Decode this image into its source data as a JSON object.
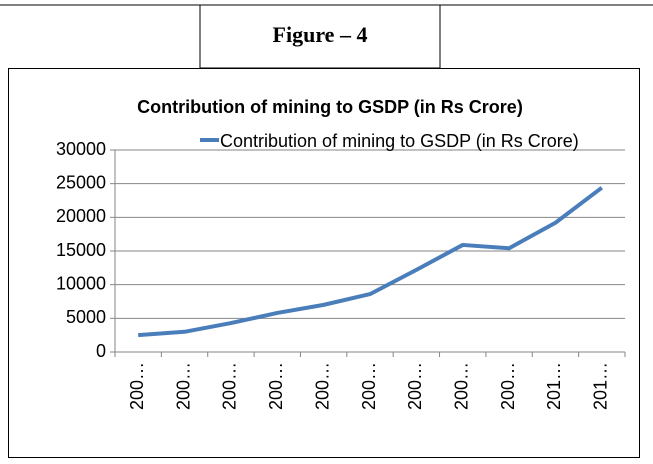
{
  "figure_label": "Figure – 4",
  "chart_data": {
    "type": "line",
    "title": "Contribution of mining to GSDP (in Rs Crore)",
    "categories": [
      "200…",
      "200…",
      "200…",
      "200…",
      "200…",
      "200…",
      "200…",
      "200…",
      "200…",
      "201…",
      "201…"
    ],
    "series": [
      {
        "name": "Contribution of mining to GSDP (in Rs Crore)",
        "color": "#4a7ebb",
        "values": [
          2500,
          3000,
          4300,
          5800,
          7000,
          8600,
          12200,
          15900,
          15400,
          19200,
          24400
        ]
      }
    ],
    "ylim": [
      0,
      30000
    ],
    "yticks": [
      0,
      5000,
      10000,
      15000,
      20000,
      25000,
      30000
    ],
    "grid": true,
    "legend": "top"
  }
}
